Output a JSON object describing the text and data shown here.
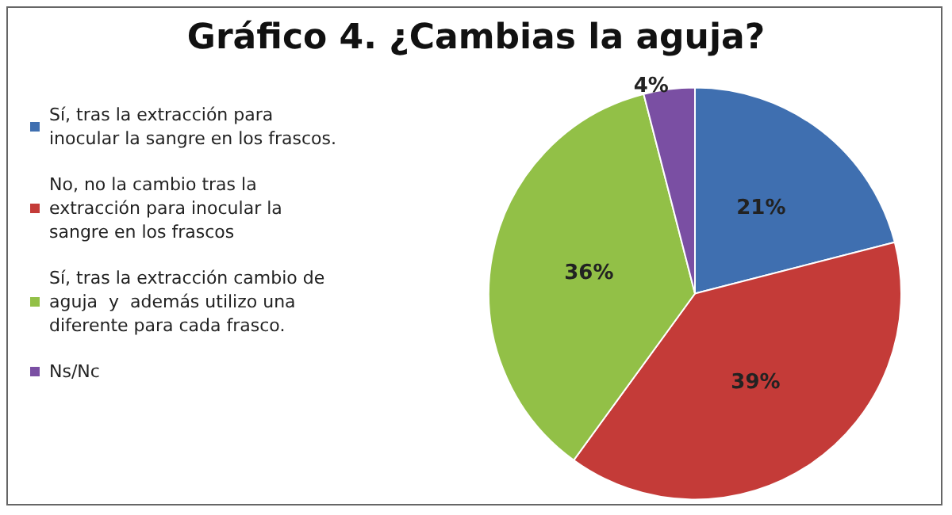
{
  "chart_data": {
    "type": "pie",
    "title": "Gráfico 4. ¿Cambias la aguja?",
    "categories": [
      "Sí, tras la extracción para inocular la sangre en los frascos.",
      "No, no la cambio tras la extracción para inocular la sangre en los frascos",
      "Sí, tras la extracción cambio de aguja  y  además utilizo una diferente para cada frasco.",
      "Ns/Nc"
    ],
    "values": [
      21,
      39,
      36,
      4
    ],
    "colors": [
      "#3f6fb0",
      "#c43b38",
      "#92c047",
      "#7a4fa3"
    ],
    "value_labels": [
      "21%",
      "39%",
      "36%",
      "4%"
    ],
    "legend": "left"
  }
}
